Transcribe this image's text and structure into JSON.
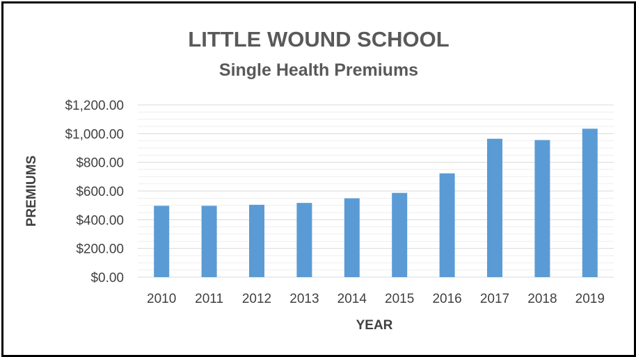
{
  "chart_data": {
    "type": "bar",
    "title": "LITTLE WOUND SCHOOL",
    "subtitle": "Single Health Premiums",
    "xlabel": "YEAR",
    "ylabel": "PREMIUMS",
    "categories": [
      "2010",
      "2011",
      "2012",
      "2013",
      "2014",
      "2015",
      "2016",
      "2017",
      "2018",
      "2019"
    ],
    "values": [
      497,
      497,
      504,
      517,
      549,
      587,
      723,
      964,
      955,
      1034
    ],
    "ylim": [
      0,
      1200
    ],
    "yticks": [
      {
        "value": 0,
        "label": "$0.00"
      },
      {
        "value": 200,
        "label": "$200.00"
      },
      {
        "value": 400,
        "label": "$400.00"
      },
      {
        "value": 600,
        "label": "$600.00"
      },
      {
        "value": 800,
        "label": "$800.00"
      },
      {
        "value": 1000,
        "label": "$1,000.00"
      },
      {
        "value": 1200,
        "label": "$1,200.00"
      }
    ],
    "minor_grid_step": 50,
    "grid": true,
    "legend": "none",
    "bar_color": "#5B9BD5",
    "major_grid_color": "#D9D9D9",
    "minor_grid_color": "#EEEEEE"
  }
}
